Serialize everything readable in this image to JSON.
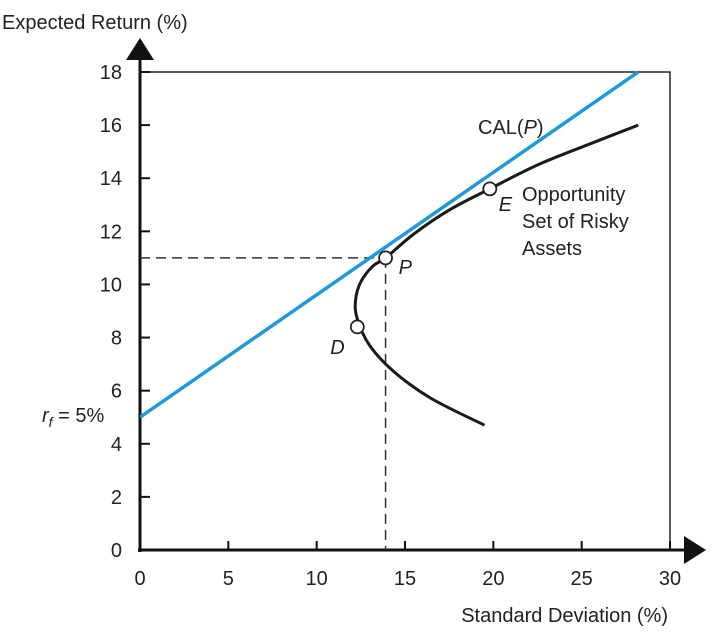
{
  "chart_data": {
    "type": "line",
    "title": "",
    "ylabel": "Expected Return (%)",
    "xlabel": "Standard Deviation (%)",
    "xlim": [
      0,
      30
    ],
    "ylim": [
      0,
      18
    ],
    "xticks": [
      "0",
      "5",
      "10",
      "15",
      "20",
      "25",
      "30"
    ],
    "yticks": [
      "0",
      "2",
      "4",
      "6",
      "8",
      "10",
      "12",
      "14",
      "16",
      "18"
    ],
    "rf_label": {
      "prefix": "r",
      "sub": "f",
      "suffix": " = 5%"
    },
    "series": [
      {
        "name": "CAL(P)",
        "name_prefix": "CAL(",
        "name_italic": "P",
        "name_suffix": ")",
        "color": "#1f9ad6",
        "points": [
          [
            0,
            5.0
          ],
          [
            28.2,
            18.0
          ]
        ]
      },
      {
        "name": "Opportunity Set of Risky Assets",
        "name_lines": [
          "Opportunity",
          "Set of Risky",
          "Assets"
        ],
        "color": "#1a1a1a",
        "points": [
          [
            19.5,
            4.7
          ],
          [
            16.5,
            5.7
          ],
          [
            14.4,
            6.7
          ],
          [
            13.0,
            7.7
          ],
          [
            12.3,
            8.7
          ],
          [
            12.2,
            9.4
          ],
          [
            12.5,
            10.1
          ],
          [
            13.2,
            10.7
          ],
          [
            13.9,
            11.0
          ],
          [
            15.5,
            11.9
          ],
          [
            17.5,
            12.8
          ],
          [
            19.8,
            13.6
          ],
          [
            22.5,
            14.5
          ],
          [
            25.5,
            15.3
          ],
          [
            28.2,
            16.0
          ]
        ]
      }
    ],
    "points": [
      {
        "label": "P",
        "x": 13.9,
        "y": 11.0
      },
      {
        "label": "E",
        "x": 19.8,
        "y": 13.6
      },
      {
        "label": "D",
        "x": 12.3,
        "y": 8.4
      }
    ],
    "guides": {
      "x": 13.9,
      "y": 11.0
    }
  }
}
